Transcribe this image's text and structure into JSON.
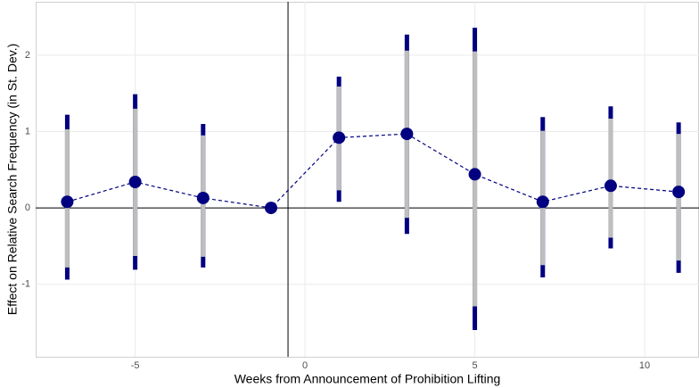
{
  "chart_data": {
    "type": "errorbar",
    "x_label": "Weeks from Announcement of Prohibition Lifting",
    "y_label": "Effect on Relative Search Frequency (in St. Dev.)",
    "x": [
      -7,
      -5,
      -3,
      -1,
      1,
      3,
      5,
      7,
      9,
      11
    ],
    "values": [
      0.08,
      0.34,
      0.13,
      0,
      0.92,
      0.97,
      0.44,
      0.08,
      0.29,
      0.21
    ],
    "ci_lower": [
      -0.94,
      -0.81,
      -0.78,
      null,
      0.08,
      -0.34,
      -1.6,
      -0.91,
      -0.53,
      -0.85
    ],
    "ci_upper": [
      1.22,
      1.49,
      1.1,
      null,
      1.72,
      2.27,
      2.36,
      1.19,
      1.33,
      1.12
    ],
    "ci_inner_lower": [
      -0.78,
      -0.63,
      -0.64,
      null,
      0.23,
      -0.13,
      -1.29,
      -0.75,
      -0.39,
      -0.69
    ],
    "ci_inner_upper": [
      1.03,
      1.3,
      0.95,
      null,
      1.59,
      2.06,
      2.05,
      1.01,
      1.17,
      0.97
    ],
    "color": "#000080",
    "inner_color": "#bebebe",
    "vline": -0.5,
    "hline": 0,
    "xlim": [
      -7.93,
      11.6
    ],
    "ylim": [
      -1.95,
      2.7
    ],
    "xticks": [
      -5,
      0,
      5,
      10
    ],
    "yticks": [
      -1,
      0,
      1,
      2
    ],
    "grid": true
  }
}
